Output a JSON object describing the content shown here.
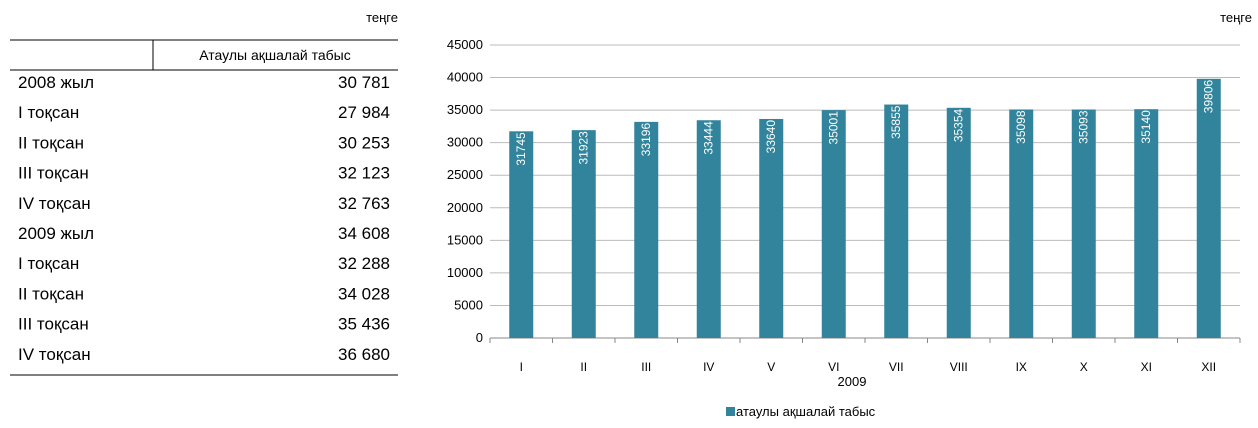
{
  "table": {
    "unit": "теңге",
    "header": [
      "",
      "Атаулы ақшалай табыс"
    ],
    "rows": [
      [
        "2008 жыл",
        "30 781"
      ],
      [
        "I тоқсан",
        "27 984"
      ],
      [
        "II тоқсан",
        "30 253"
      ],
      [
        "III тоқсан",
        "32 123"
      ],
      [
        "IV тоқсан",
        "32 763"
      ],
      [
        "2009 жыл",
        "34 608"
      ],
      [
        "I тоқсан",
        "32 288"
      ],
      [
        "II тоқсан",
        "34 028"
      ],
      [
        "III тоқсан",
        "35 436"
      ],
      [
        "IV тоқсан",
        "36 680"
      ]
    ]
  },
  "chart_data": {
    "type": "bar",
    "unit": "теңге",
    "xlabel": "2009",
    "categories": [
      "I",
      "II",
      "III",
      "IV",
      "V",
      "VI",
      "VII",
      "VIII",
      "IX",
      "X",
      "XI",
      "XII"
    ],
    "series": [
      {
        "name": "атаулы ақшалай табыс",
        "color": "#31849b",
        "values": [
          31745,
          31923,
          33196,
          33444,
          33640,
          35001,
          35855,
          35354,
          35098,
          35093,
          35140,
          39806
        ]
      }
    ],
    "ylim": [
      0,
      45000
    ],
    "yticks": [
      0,
      5000,
      10000,
      15000,
      20000,
      25000,
      30000,
      35000,
      40000,
      45000
    ],
    "grid": true,
    "legend": "bottom"
  }
}
